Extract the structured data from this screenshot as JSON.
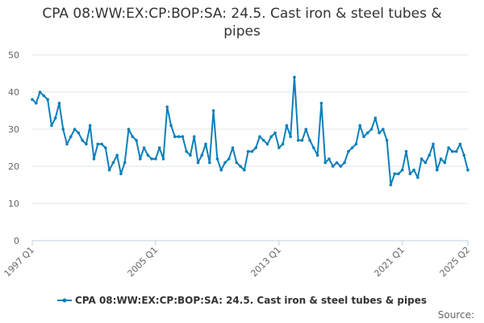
{
  "chart_data": {
    "type": "line",
    "title": "CPA 08:WW:EX:CP:BOP:SA: 24.5. Cast iron & steel tubes & pipes",
    "xlabel": "",
    "ylabel": "",
    "ylim": [
      0,
      50
    ],
    "y_ticks": [
      0,
      10,
      20,
      30,
      40,
      50
    ],
    "x_tick_labels": [
      "1997 Q1",
      "2005 Q1",
      "2013 Q1",
      "2021 Q1",
      "2025 Q2"
    ],
    "x_tick_index": [
      0,
      32,
      64,
      96,
      113
    ],
    "grid": true,
    "legend_position": "bottom",
    "series": [
      {
        "name": "CPA 08:WW:EX:CP:BOP:SA: 24.5. Cast iron & steel tubes & pipes",
        "color": "#0b7fba",
        "values": [
          38,
          37,
          40,
          39,
          38,
          31,
          33,
          37,
          30,
          26,
          28,
          30,
          29,
          27,
          26,
          31,
          22,
          26,
          26,
          25,
          19,
          21,
          23,
          18,
          21,
          30,
          28,
          27,
          22,
          25,
          23,
          22,
          22,
          25,
          22,
          36,
          31,
          28,
          28,
          28,
          24,
          23,
          28,
          21,
          23,
          26,
          21,
          35,
          22,
          19,
          21,
          22,
          25,
          21,
          20,
          19,
          24,
          24,
          25,
          28,
          27,
          26,
          28,
          29,
          25,
          26,
          31,
          28,
          44,
          27,
          27,
          30,
          27,
          25,
          23,
          37,
          21,
          22,
          20,
          21,
          20,
          21,
          24,
          25,
          26,
          31,
          28,
          29,
          30,
          33,
          29,
          30,
          27,
          15,
          18,
          18,
          19,
          24,
          18,
          19,
          17,
          22,
          21,
          23,
          26,
          19,
          22,
          21,
          25,
          24,
          24,
          26,
          23,
          19
        ]
      }
    ]
  },
  "source_label": "Source:"
}
